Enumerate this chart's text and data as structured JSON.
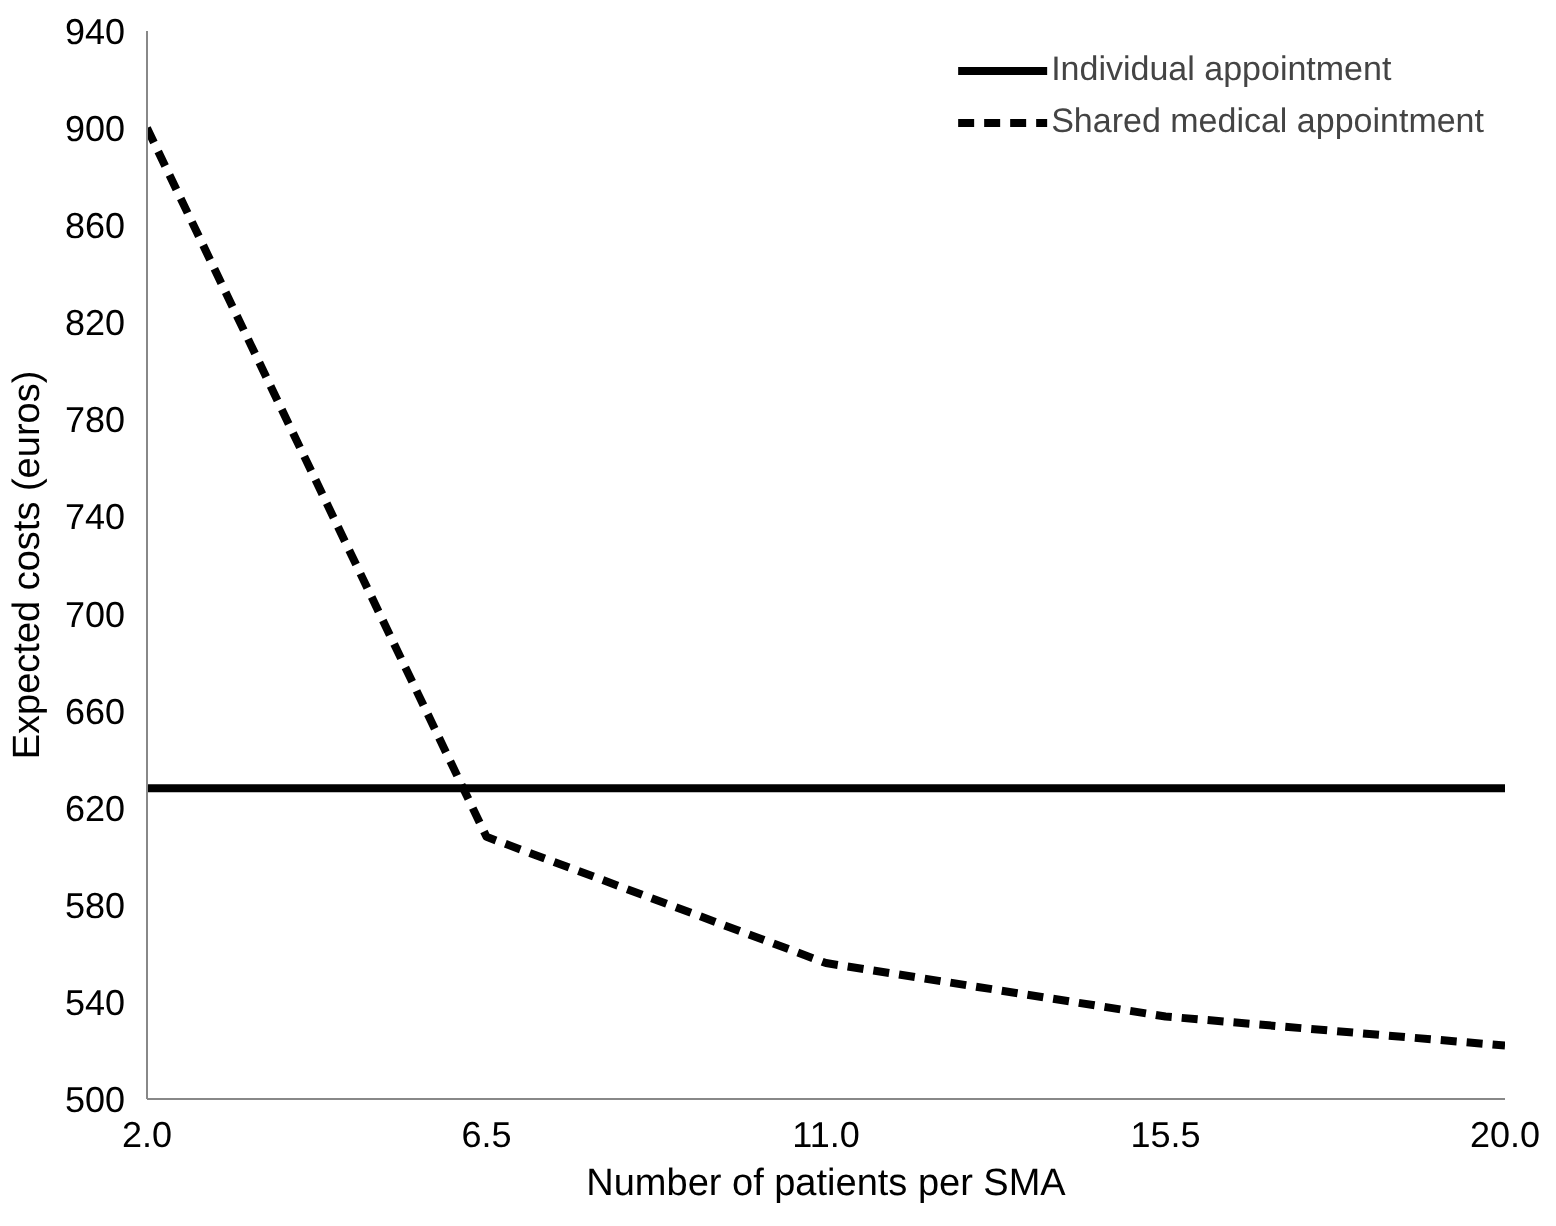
{
  "chart_data": {
    "type": "line",
    "xlabel": "Number of patients per SMA",
    "ylabel": "Expected costs (euros)",
    "x": [
      2,
      6.5,
      11,
      15.5,
      20
    ],
    "series": [
      {
        "name": "Individual appointment",
        "color": "#000000",
        "line_style": "solid",
        "values": [
          628,
          628,
          628,
          628,
          628
        ]
      },
      {
        "name": "Shared medical appointment",
        "color": "#000000",
        "line_style": "dashed",
        "values": [
          900,
          608,
          556,
          534,
          522
        ]
      }
    ],
    "xlim": [
      2,
      20
    ],
    "xticks": [
      {
        "value": 2,
        "label": "2.0"
      },
      {
        "value": 6.5,
        "label": "6.5"
      },
      {
        "value": 11,
        "label": "11.0"
      },
      {
        "value": 15.5,
        "label": "15.5"
      },
      {
        "value": 20,
        "label": "20.0"
      }
    ],
    "ylim": [
      500,
      940
    ],
    "yticks": [
      500,
      540,
      580,
      620,
      660,
      700,
      740,
      780,
      820,
      860,
      900,
      940
    ],
    "grid": false,
    "legend": "top right",
    "marker": "none"
  }
}
